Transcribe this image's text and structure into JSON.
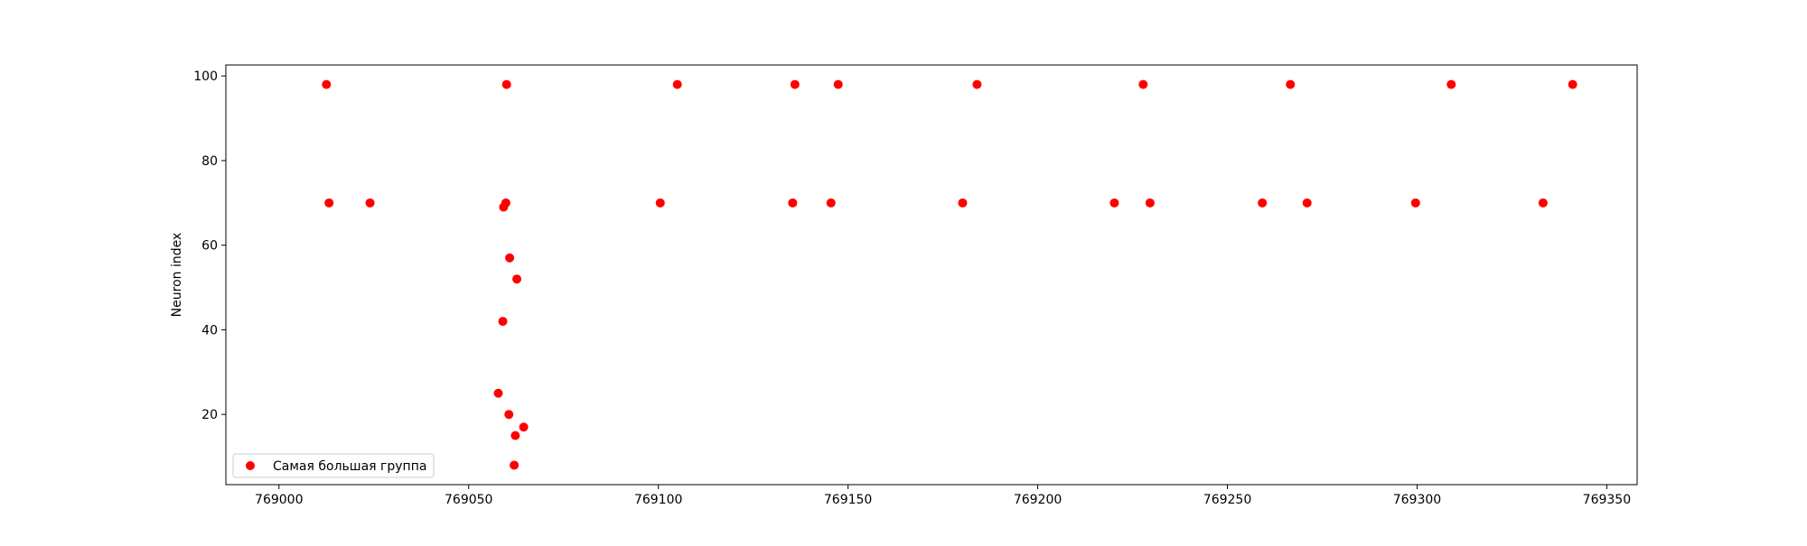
{
  "chart_data": {
    "type": "scatter",
    "title": "",
    "xlabel": "",
    "ylabel": "Neuron index",
    "xlim": [
      768986,
      769358
    ],
    "ylim": [
      3.4,
      102.6
    ],
    "xticks": [
      769000,
      769050,
      769100,
      769150,
      769200,
      769250,
      769300,
      769350
    ],
    "xtick_labels": [
      "769000",
      "769050",
      "769100",
      "769150",
      "769200",
      "769250",
      "769300",
      "769350"
    ],
    "yticks": [
      20,
      40,
      60,
      80,
      100
    ],
    "ytick_labels": [
      "20",
      "40",
      "60",
      "80",
      "100"
    ],
    "grid": false,
    "legend_position": "lower-left",
    "series": [
      {
        "name": "Самая большая группа",
        "color": "#ff0000",
        "marker": "circle",
        "points": [
          {
            "x": 769012.5,
            "y": 98
          },
          {
            "x": 769013.2,
            "y": 70
          },
          {
            "x": 769024.0,
            "y": 70
          },
          {
            "x": 769057.8,
            "y": 25
          },
          {
            "x": 769059.0,
            "y": 42
          },
          {
            "x": 769059.2,
            "y": 69
          },
          {
            "x": 769059.8,
            "y": 70
          },
          {
            "x": 769060.0,
            "y": 98
          },
          {
            "x": 769060.6,
            "y": 20
          },
          {
            "x": 769060.8,
            "y": 57
          },
          {
            "x": 769062.0,
            "y": 8
          },
          {
            "x": 769062.3,
            "y": 15
          },
          {
            "x": 769062.7,
            "y": 52
          },
          {
            "x": 769064.5,
            "y": 17
          },
          {
            "x": 769100.5,
            "y": 70
          },
          {
            "x": 769105.0,
            "y": 98
          },
          {
            "x": 769135.4,
            "y": 70
          },
          {
            "x": 769136.0,
            "y": 98
          },
          {
            "x": 769145.5,
            "y": 70
          },
          {
            "x": 769147.4,
            "y": 98
          },
          {
            "x": 769180.2,
            "y": 70
          },
          {
            "x": 769184.0,
            "y": 98
          },
          {
            "x": 769220.2,
            "y": 70
          },
          {
            "x": 769227.8,
            "y": 98
          },
          {
            "x": 769229.6,
            "y": 70
          },
          {
            "x": 769259.2,
            "y": 70
          },
          {
            "x": 769266.6,
            "y": 98
          },
          {
            "x": 769271.0,
            "y": 70
          },
          {
            "x": 769299.6,
            "y": 70
          },
          {
            "x": 769309.0,
            "y": 98
          },
          {
            "x": 769333.2,
            "y": 70
          },
          {
            "x": 769341.0,
            "y": 98
          }
        ]
      }
    ]
  }
}
